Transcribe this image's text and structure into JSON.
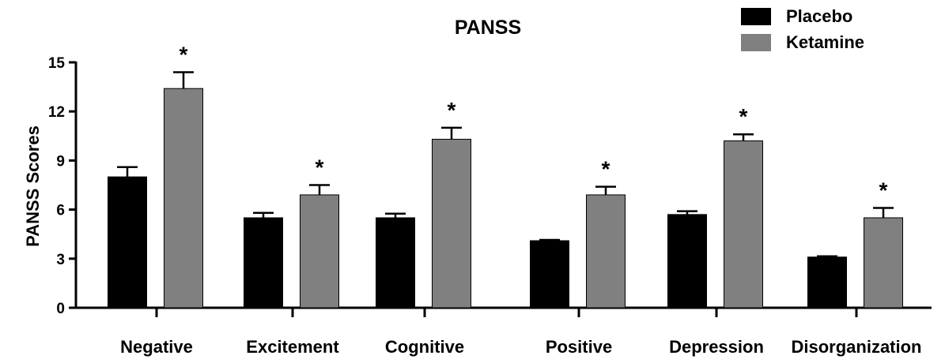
{
  "chart_data": {
    "type": "bar",
    "title": "PANSS",
    "xlabel": "",
    "ylabel": "PANSS Scores",
    "ylim": [
      0,
      15
    ],
    "yticks": [
      0,
      3,
      6,
      9,
      12,
      15
    ],
    "ytick_labels": [
      "0",
      "3",
      "6",
      "9",
      "12",
      "15"
    ],
    "grid": false,
    "legend_position": "top-right",
    "categories": [
      "Negative",
      "Excitement",
      "Cognitive",
      "Positive",
      "Depression",
      "Disorganization"
    ],
    "series": [
      {
        "name": "Placebo",
        "color": "#000000",
        "values": [
          8.0,
          5.5,
          5.5,
          4.1,
          5.7,
          3.1
        ],
        "errors": [
          0.6,
          0.3,
          0.25,
          0.05,
          0.2,
          0.05
        ]
      },
      {
        "name": "Ketamine",
        "color": "#808080",
        "values": [
          13.4,
          6.9,
          10.3,
          6.9,
          10.2,
          5.5
        ],
        "errors": [
          1.0,
          0.6,
          0.7,
          0.5,
          0.4,
          0.6
        ]
      }
    ],
    "annotations": [
      "*",
      "*",
      "*",
      "*",
      "*",
      "*"
    ]
  }
}
